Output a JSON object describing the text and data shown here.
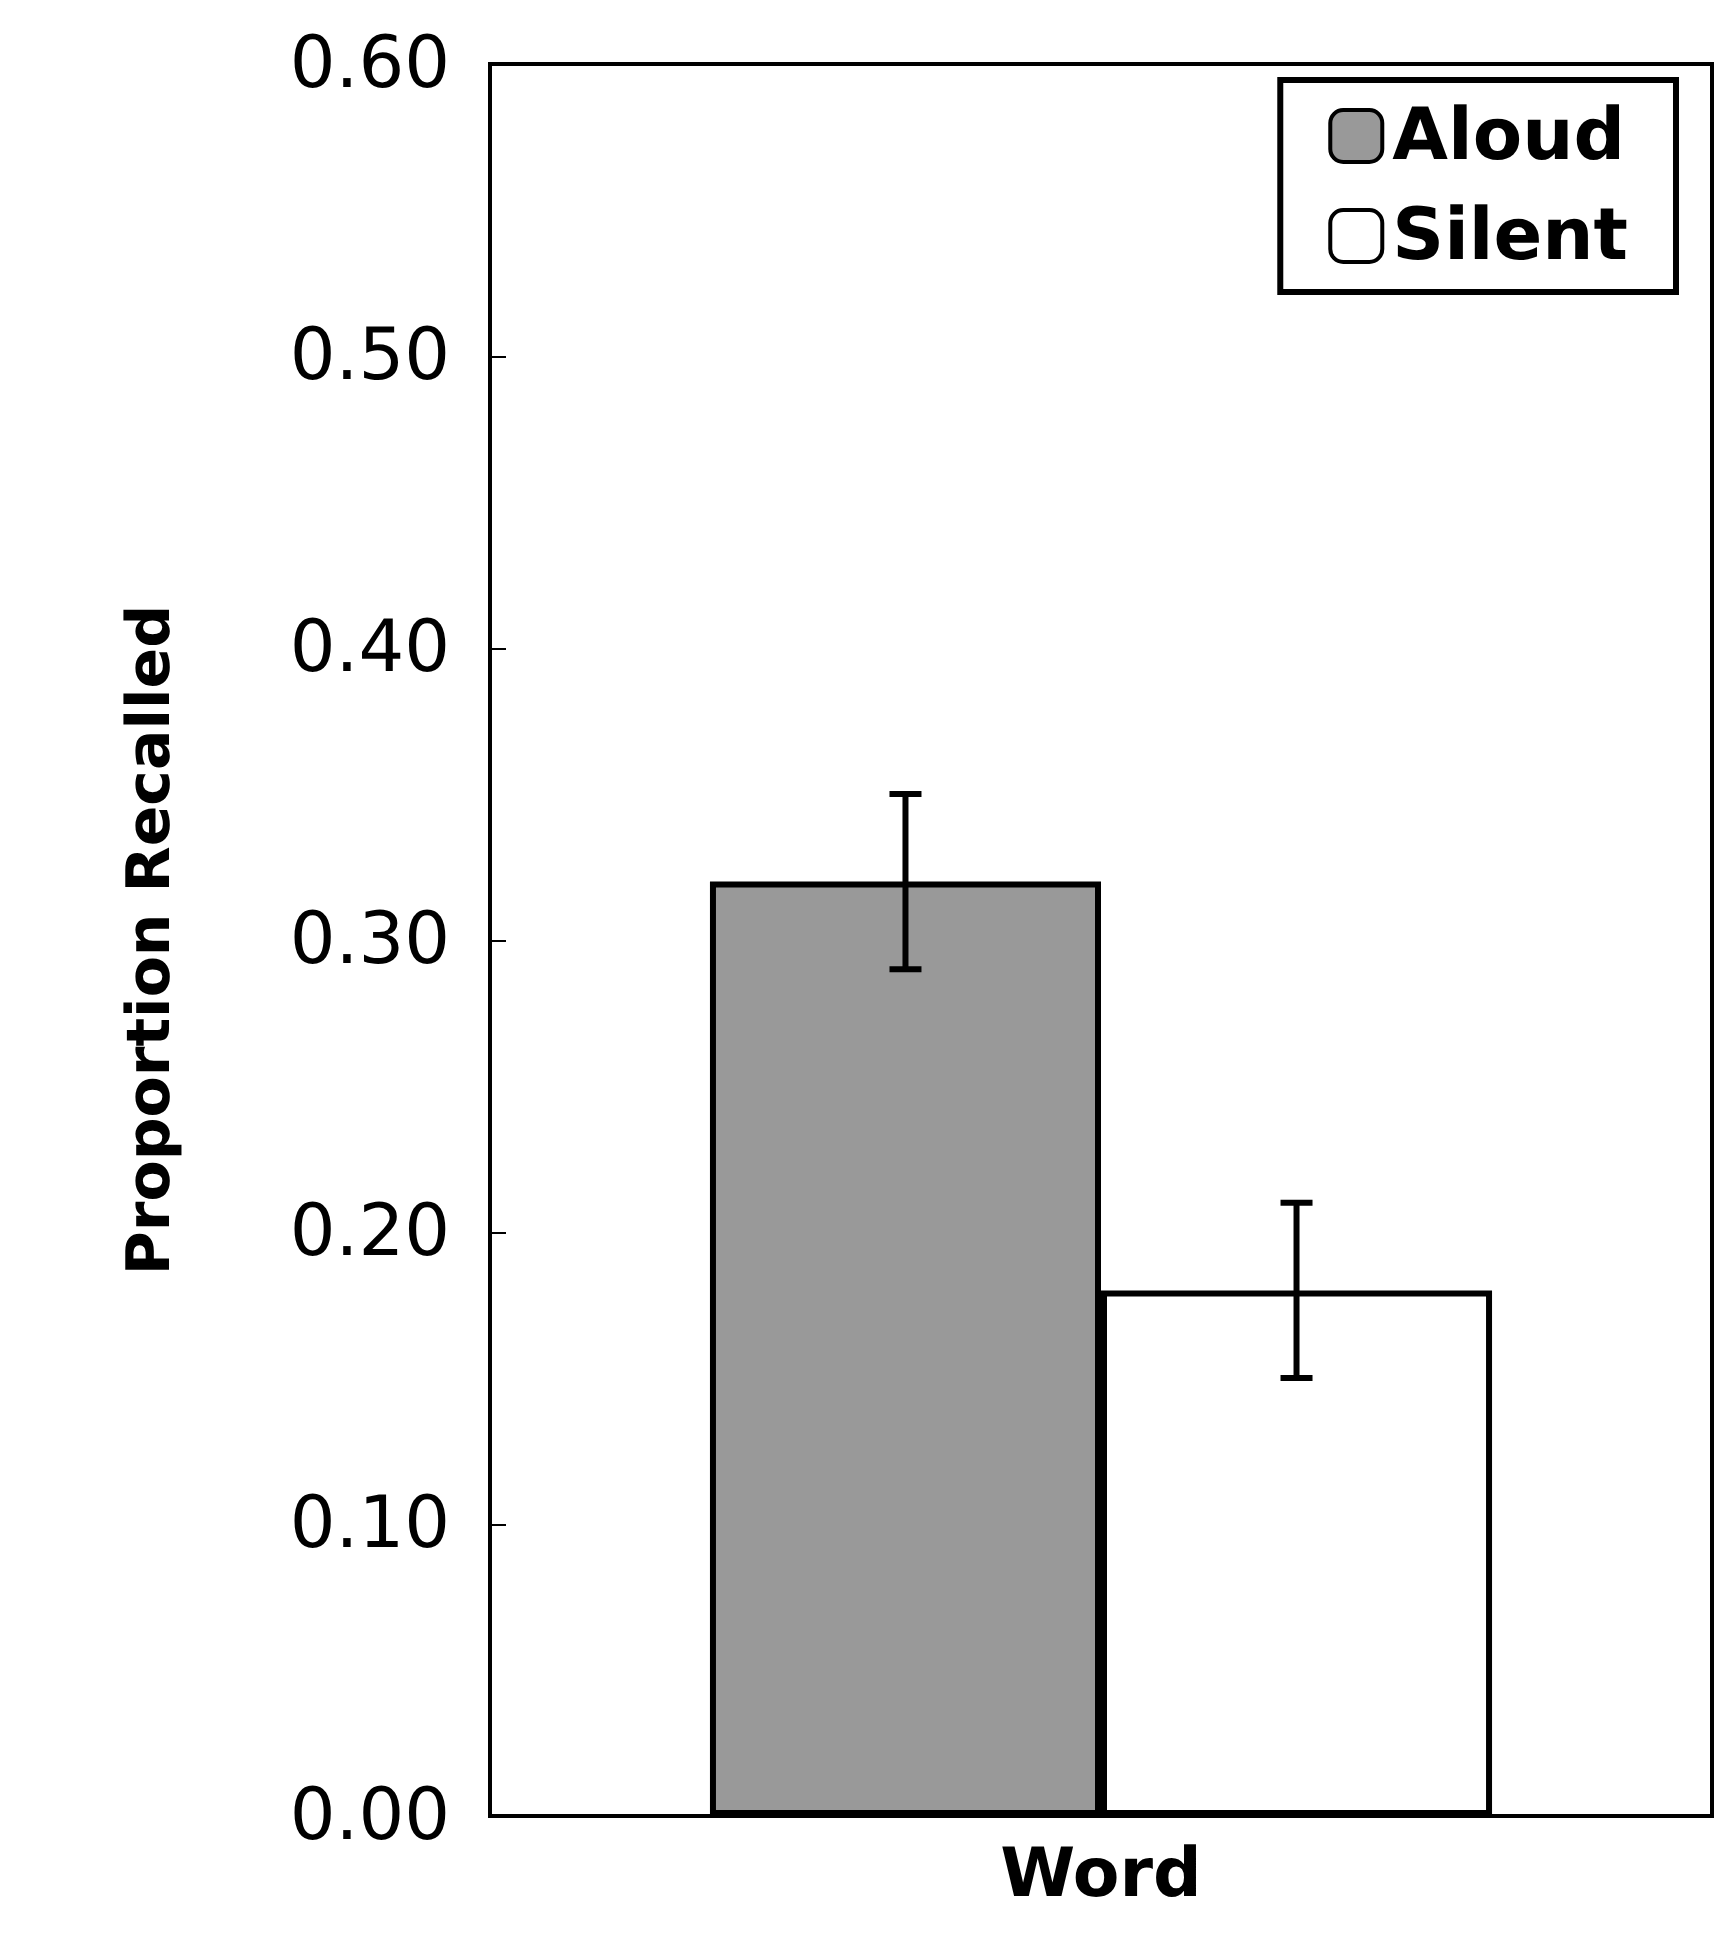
{
  "chart_data": {
    "type": "bar",
    "ylabel": "Proportion Recalled",
    "categories": [
      "Word"
    ],
    "series": [
      {
        "name": "Aloud",
        "color": "#999999",
        "values": [
          0.32
        ],
        "errors": [
          0.03
        ]
      },
      {
        "name": "Silent",
        "color": "#ffffff",
        "values": [
          0.18
        ],
        "errors": [
          0.03
        ]
      }
    ],
    "ylim": [
      0,
      0.6
    ],
    "yticks": [
      {
        "value": 0,
        "label": "0.00"
      },
      {
        "value": 0.1,
        "label": "0.10"
      },
      {
        "value": 0.2,
        "label": "0.20"
      },
      {
        "value": 0.3,
        "label": "0.30"
      },
      {
        "value": 0.4,
        "label": "0.40"
      },
      {
        "value": 0.5,
        "label": "0.50"
      },
      {
        "value": 0.6,
        "label": "0.60"
      }
    ],
    "grid": false,
    "legend": "top right"
  }
}
